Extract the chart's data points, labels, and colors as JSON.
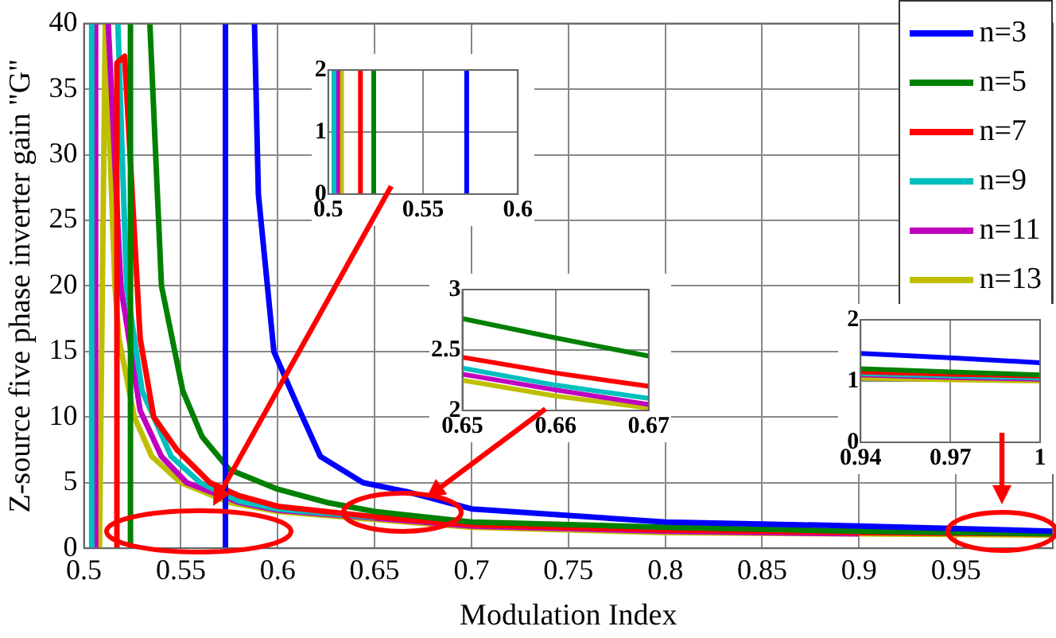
{
  "chart_data": [
    {
      "type": "line",
      "xlabel": "Modulation Index",
      "ylabel": "Z-source five phase inverter gain \"G\"",
      "xlim": [
        0.5,
        1
      ],
      "ylim": [
        0,
        40
      ],
      "xticks": [
        0.5,
        0.55,
        0.6,
        0.65,
        0.7,
        0.75,
        0.8,
        0.85,
        0.9,
        0.95
      ],
      "yticks": [
        0,
        5,
        10,
        15,
        20,
        25,
        30,
        35,
        40
      ],
      "grid": true,
      "legend": "top right",
      "marker": "none",
      "line_style": "solid",
      "series": [
        {
          "name": "n=3",
          "color": "#0000ff",
          "x": [
            0.573,
            0.573,
            0.58,
            0.588,
            0.59,
            0.598,
            0.611,
            0.622,
            0.644,
            0.667,
            0.7,
            0.8,
            0.9,
            1.0
          ],
          "values": [
            0,
            40,
            null,
            40,
            27,
            15,
            10.6,
            7,
            5,
            4.3,
            3,
            2,
            1.7,
            1.3
          ]
        },
        {
          "name": "n=5",
          "color": "#008000",
          "x": [
            0.524,
            0.524,
            0.529,
            0.534,
            0.54,
            0.551,
            0.561,
            0.575,
            0.6,
            0.625,
            0.65,
            0.7,
            0.8,
            0.9,
            1.0
          ],
          "values": [
            0,
            40,
            null,
            40,
            20,
            12,
            8.5,
            6,
            4.5,
            3.5,
            2.8,
            2,
            1.6,
            1.3,
            1.1
          ]
        },
        {
          "name": "n=7",
          "color": "#ff0000",
          "x": [
            0.517,
            0.517,
            0.521,
            0.529,
            0.536,
            0.548,
            0.565,
            0.58,
            0.6,
            0.65,
            0.7,
            0.8,
            0.9,
            1.0
          ],
          "values": [
            0,
            37,
            37.5,
            16,
            10,
            7.5,
            5,
            4,
            3.2,
            2.4,
            1.8,
            1.4,
            1.2,
            1.1
          ]
        },
        {
          "name": "n=9",
          "color": "#00bfbf",
          "x": [
            0.504,
            0.504,
            0.51,
            0.5175,
            0.522,
            0.53,
            0.545,
            0.56,
            0.58,
            0.6,
            0.65
          ],
          "values": [
            0,
            40,
            null,
            40,
            20,
            12,
            7,
            5,
            3.6,
            3,
            2.35
          ]
        },
        {
          "name": "n=11",
          "color": "#bf00bf",
          "x": [
            0.506,
            0.506,
            0.509,
            0.5125,
            0.519,
            0.529,
            0.54,
            0.553,
            0.58,
            0.6,
            0.65,
            0.7,
            0.8,
            0.9
          ],
          "values": [
            0,
            40,
            null,
            40,
            20,
            10.5,
            7,
            5,
            3.5,
            2.9,
            2.3,
            1.7,
            1.3,
            1.1
          ]
        },
        {
          "name": "n=13",
          "color": "#bfbf00",
          "x": [
            0.508,
            0.511,
            0.516,
            0.518,
            0.526,
            0.535,
            0.55,
            0.575,
            0.6,
            0.65,
            0.7,
            0.8,
            0.9,
            1.0
          ],
          "values": [
            0,
            40,
            20,
            16,
            10,
            7,
            5,
            3.5,
            2.8,
            2.2,
            1.6,
            1.2,
            1.1,
            1.0
          ]
        }
      ]
    },
    {
      "type": "line",
      "xlim": [
        0.5,
        0.6
      ],
      "ylim": [
        0,
        2
      ],
      "xticks": [
        0.5,
        0.55,
        0.6
      ],
      "yticks": [
        0,
        1,
        2
      ],
      "grid": true,
      "marker": "none",
      "line_style": "solid",
      "series": [
        {
          "color": "#0000ff",
          "x": [
            0.573,
            0.573
          ],
          "values": [
            0,
            2
          ]
        },
        {
          "color": "#008000",
          "x": [
            0.524,
            0.524
          ],
          "values": [
            0,
            2
          ]
        },
        {
          "color": "#ff0000",
          "x": [
            0.517,
            0.517
          ],
          "values": [
            0,
            2
          ]
        },
        {
          "color": "#00bfbf",
          "x": [
            0.503,
            0.503
          ],
          "values": [
            0,
            2
          ]
        },
        {
          "color": "#bf00bf",
          "x": [
            0.505,
            0.505
          ],
          "values": [
            0,
            2
          ]
        },
        {
          "color": "#bfbf00",
          "x": [
            0.507,
            0.507
          ],
          "values": [
            0,
            2
          ]
        }
      ]
    },
    {
      "type": "line",
      "xlim": [
        0.65,
        0.67
      ],
      "ylim": [
        2,
        3
      ],
      "xticks": [
        0.65,
        0.66,
        0.67
      ],
      "yticks": [
        2,
        2.5,
        3
      ],
      "grid": true,
      "marker": "none",
      "line_style": "solid",
      "series": [
        {
          "color": "#008000",
          "x": [
            0.65,
            0.66,
            0.67
          ],
          "values": [
            2.76,
            2.6,
            2.45
          ]
        },
        {
          "color": "#ff0000",
          "x": [
            0.65,
            0.66,
            0.67
          ],
          "values": [
            2.44,
            2.31,
            2.2
          ]
        },
        {
          "color": "#00bfbf",
          "x": [
            0.65,
            0.66,
            0.67
          ],
          "values": [
            2.35,
            2.21,
            2.1
          ]
        },
        {
          "color": "#bf00bf",
          "x": [
            0.65,
            0.66,
            0.67
          ],
          "values": [
            2.3,
            2.17,
            2.05
          ]
        },
        {
          "color": "#bfbf00",
          "x": [
            0.65,
            0.66,
            0.67
          ],
          "values": [
            2.25,
            2.12,
            2.02
          ]
        }
      ]
    },
    {
      "type": "line",
      "xlim": [
        0.94,
        1
      ],
      "ylim": [
        0,
        2
      ],
      "xticks": [
        0.94,
        0.97,
        1
      ],
      "yticks": [
        0,
        1,
        2
      ],
      "grid": true,
      "marker": "none",
      "line_style": "solid",
      "series": [
        {
          "color": "#0000ff",
          "x": [
            0.94,
            0.97,
            1.0
          ],
          "values": [
            1.45,
            1.38,
            1.3
          ]
        },
        {
          "color": "#008000",
          "x": [
            0.94,
            0.97,
            1.0
          ],
          "values": [
            1.2,
            1.15,
            1.1
          ]
        },
        {
          "color": "#ff0000",
          "x": [
            0.94,
            0.97,
            1.0
          ],
          "values": [
            1.15,
            1.11,
            1.08
          ]
        },
        {
          "color": "#00bfbf",
          "x": [
            0.94,
            0.97,
            1.0
          ],
          "values": [
            1.12,
            1.08,
            1.05
          ]
        },
        {
          "color": "#bf00bf",
          "x": [
            0.94,
            0.97,
            1.0
          ],
          "values": [
            1.1,
            1.06,
            1.03
          ]
        },
        {
          "color": "#bfbf00",
          "x": [
            0.94,
            0.97,
            1.0
          ],
          "values": [
            1.05,
            1.02,
            1.0
          ]
        }
      ]
    }
  ]
}
